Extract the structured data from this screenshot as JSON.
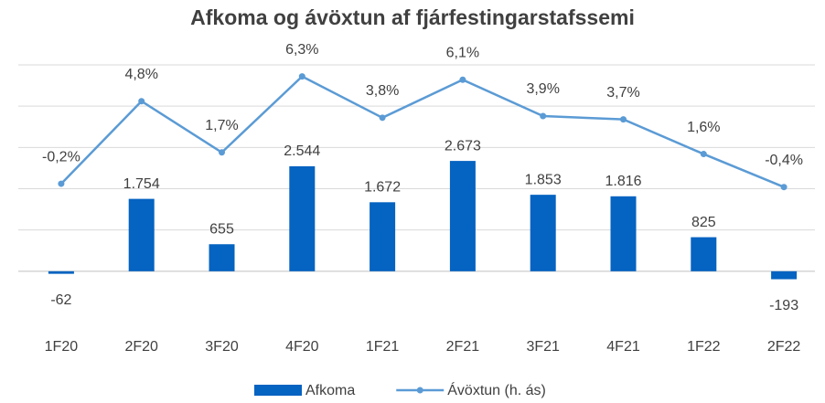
{
  "chart_data": {
    "type": "bar_line",
    "title": "Afkoma og ávöxtun af fjárfestingarstafssemi",
    "categories": [
      "1F20",
      "2F20",
      "3F20",
      "4F20",
      "1F21",
      "2F21",
      "3F21",
      "4F21",
      "1F22",
      "2F22"
    ],
    "series": [
      {
        "name": "Afkoma",
        "type": "bar",
        "color": "#0563c1",
        "values": [
          -62,
          1754,
          655,
          2544,
          1672,
          2673,
          1853,
          1816,
          825,
          -193
        ],
        "value_labels": [
          "-62",
          "1.754",
          "655",
          "2.544",
          "1.672",
          "2.673",
          "1.853",
          "1.816",
          "825",
          "-193"
        ]
      },
      {
        "name": "Ávöxtun (h. ás)",
        "type": "line",
        "axis": "y2",
        "color": "#5b9bd5",
        "values": [
          -0.2,
          4.8,
          1.7,
          6.3,
          3.8,
          6.1,
          3.9,
          3.7,
          1.6,
          -0.4
        ],
        "value_labels": [
          "-0,2%",
          "4,8%",
          "1,7%",
          "6,3%",
          "3,8%",
          "6,1%",
          "3,9%",
          "3,7%",
          "1,6%",
          "-0,4%"
        ]
      }
    ],
    "ylim": [
      -1000,
      5000
    ],
    "yticks": [
      -1000,
      0,
      1000,
      2000,
      3000,
      4000,
      5000
    ],
    "y2lim": [
      -8,
      7
    ],
    "grid": true,
    "legend": "bottom"
  }
}
